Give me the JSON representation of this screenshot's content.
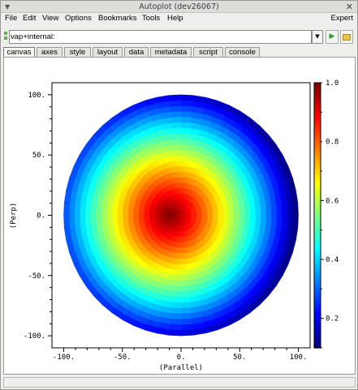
{
  "window": {
    "title": "Autoplot (dev26067)"
  },
  "menubar": {
    "items": [
      "File",
      "Edit",
      "View",
      "Options",
      "Bookmarks",
      "Tools",
      "Help"
    ],
    "expert": "Expert"
  },
  "address": {
    "value": "vap+internal:"
  },
  "tabs": [
    {
      "label": "canvas",
      "active": true
    },
    {
      "label": "axes"
    },
    {
      "label": "style"
    },
    {
      "label": "layout"
    },
    {
      "label": "data"
    },
    {
      "label": "metadata"
    },
    {
      "label": "script"
    },
    {
      "label": "console"
    }
  ],
  "icons": {
    "window_menu": "chevron-down-icon",
    "close": "close-icon",
    "dropdown": "chevron-down-icon",
    "go": "play-icon",
    "open": "folder-icon"
  },
  "chart_data": {
    "type": "heatmap",
    "projection": "polar",
    "xlabel": "(Parallel)",
    "ylabel": "(Perp)",
    "xlim": [
      -110,
      110
    ],
    "ylim": [
      -110,
      110
    ],
    "x_ticks": [
      "-100.",
      "-50.",
      "0.",
      "50.",
      "100."
    ],
    "y_ticks": [
      "100.",
      "50.",
      "0.",
      "-50.",
      "-100."
    ],
    "r_max": 100,
    "peak": {
      "x": -10,
      "y": 0,
      "value": 1.0
    },
    "colorbar": {
      "ticks": [
        "1.0",
        "0.8",
        "0.6",
        "0.4",
        "0.2"
      ],
      "range": [
        0.1,
        1.0
      ],
      "colormap": "jet"
    },
    "grid": false
  }
}
